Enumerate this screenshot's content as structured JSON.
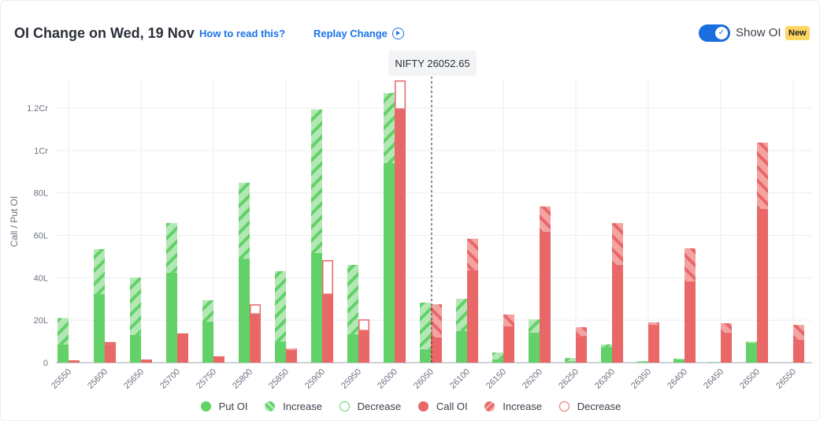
{
  "header": {
    "title": "OI Change on Wed, 19 Nov",
    "how_to_read": "How to read this?",
    "replay": "Replay Change",
    "show_oi_label": "Show OI",
    "new_badge": "New",
    "show_oi_enabled": true
  },
  "colors": {
    "put": "#62d168",
    "put_light": "#b3e8b5",
    "call": "#e96767",
    "call_light": "#f4a3a3",
    "grid": "#eceef2",
    "link": "#1a73e8"
  },
  "chart_data": {
    "type": "bar",
    "ylabel": "Call / Put OI",
    "y_ticks": [
      {
        "v": 0,
        "label": "0"
      },
      {
        "v": 20,
        "label": "20L"
      },
      {
        "v": 40,
        "label": "40L"
      },
      {
        "v": 60,
        "label": "60L"
      },
      {
        "v": 80,
        "label": "80L"
      },
      {
        "v": 100,
        "label": "1Cr"
      },
      {
        "v": 120,
        "label": "1.2Cr"
      }
    ],
    "y_unit": "lakh",
    "ylim": [
      0,
      133
    ],
    "spot_label": "NIFTY 26052.65",
    "spot": 26052.65,
    "categories": [
      "25550",
      "25600",
      "25650",
      "25700",
      "25750",
      "25800",
      "25850",
      "25900",
      "25950",
      "26000",
      "26050",
      "26100",
      "26150",
      "26200",
      "26250",
      "26300",
      "26350",
      "26400",
      "26450",
      "26500",
      "26550"
    ],
    "series": [
      {
        "name": "Put OI",
        "current": [
          21,
          53.5,
          40.1,
          65.8,
          29.4,
          84.8,
          43.1,
          119.3,
          46.1,
          127.1,
          28.3,
          30.1,
          4.8,
          20.4,
          2.2,
          8.6,
          0.7,
          1.9,
          0.3,
          10,
          0
        ],
        "previous": [
          8.6,
          32.3,
          13,
          42.4,
          19.3,
          49,
          10,
          51.7,
          13.4,
          94,
          6.3,
          14.9,
          1.5,
          14.1,
          0.7,
          7.4,
          0.5,
          1.5,
          0.2,
          9.3,
          0
        ]
      },
      {
        "name": "Call OI",
        "current": [
          1.1,
          8.6,
          1.5,
          13.8,
          3,
          22.7,
          6.7,
          32,
          14.9,
          119.3,
          27.5,
          58.4,
          22.7,
          73.6,
          16.7,
          65.8,
          19,
          53.9,
          18.6,
          103.7,
          17.8
        ],
        "previous": [
          1.1,
          9.7,
          1.5,
          13.8,
          3,
          27.5,
          6,
          48.3,
          20.4,
          133,
          11.9,
          43.5,
          17.1,
          61.7,
          12.6,
          46.1,
          17.8,
          38.3,
          14.1,
          72.5,
          10.8
        ]
      }
    ],
    "legend": [
      "Put OI",
      "Increase",
      "Decrease",
      "Call OI",
      "Increase",
      "Decrease"
    ],
    "legend_placement": "bottom",
    "grid": true
  }
}
